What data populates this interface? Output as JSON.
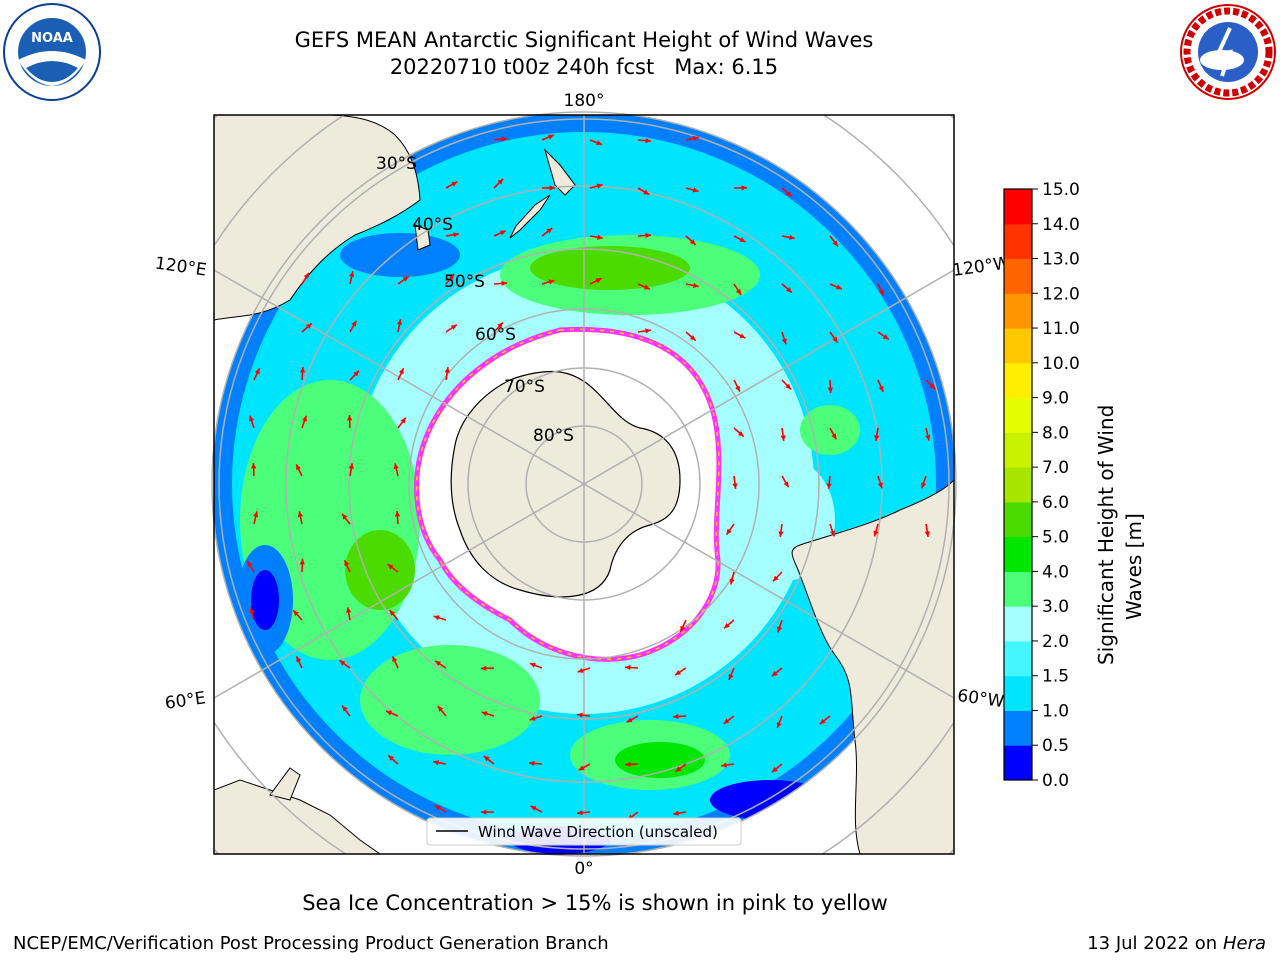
{
  "header": {
    "title_line1": "GEFS MEAN Antarctic Significant Height of Wind Waves",
    "title_line2": "20220710 t00z 240h fcst   Max: 6.15"
  },
  "logos": {
    "left": "noaa-logo",
    "right": "national-weather-service-logo",
    "right_text": "NATIONAL WEATHER SERVICE"
  },
  "map": {
    "projection": "south-polar-stereographic",
    "longitude_labels": [
      "180°",
      "120°E",
      "120°W",
      "60°E",
      "60°W",
      "0°"
    ],
    "latitude_labels": [
      "30°S",
      "40°S",
      "50°S",
      "60°S",
      "70°S",
      "80°S"
    ],
    "legend_label": "Wind Wave Direction (unscaled)",
    "land_color": "#efebdc",
    "ice_edge_colors": [
      "#ff33ff",
      "#ffcc00"
    ],
    "arrow_color": "#ff0000"
  },
  "colorbar": {
    "label_line1": "Significant Height of Wind",
    "label_line2": "Waves [m]",
    "ticks": [
      "0.0",
      "0.5",
      "1.0",
      "1.5",
      "2.0",
      "3.0",
      "4.0",
      "5.0",
      "6.0",
      "7.0",
      "8.0",
      "9.0",
      "10.0",
      "11.0",
      "12.0",
      "13.0",
      "14.0",
      "15.0"
    ],
    "colors": [
      "#0000ff",
      "#0080ff",
      "#00e5ff",
      "#44f6ff",
      "#a6ffff",
      "#4cff7a",
      "#00e600",
      "#4cdb00",
      "#a8e600",
      "#c9f200",
      "#e6ff00",
      "#ffee00",
      "#ffc800",
      "#ff9600",
      "#ff6400",
      "#ff3200",
      "#ff0000"
    ]
  },
  "footer": {
    "note": "Sea Ice Concentration > 15% is shown in pink to yellow",
    "credit": "NCEP/EMC/Verification Post Processing Product Generation Branch",
    "date": "13 Jul 2022 on ",
    "machine": "Hera"
  }
}
